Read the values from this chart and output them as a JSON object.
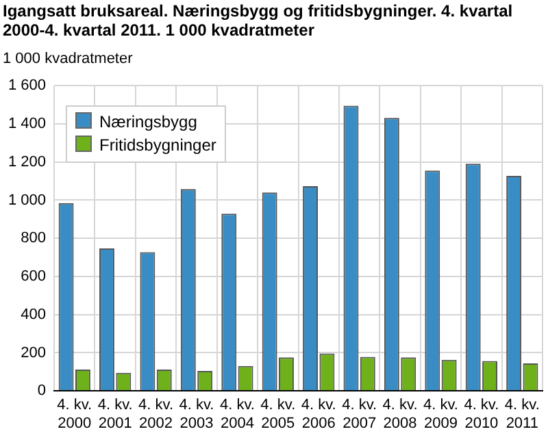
{
  "chart_data": {
    "type": "bar",
    "title": "Igangsatt bruksareal. Næringsbygg og fritidsbygninger. 4. kvartal 2000-4. kvartal 2011. 1 000 kvadratmeter",
    "ylabel": "1 000 kvadratmeter",
    "categories": [
      "4. kv. 2000",
      "4. kv. 2001",
      "4. kv. 2002",
      "4. kv. 2003",
      "4. kv. 2004",
      "4. kv. 2005",
      "4. kv. 2006",
      "4. kv. 2007",
      "4. kv. 2008",
      "4. kv. 2009",
      "4. kv. 2010",
      "4. kv. 2011"
    ],
    "series": [
      {
        "name": "Næringsbygg",
        "color": "#3a8dc4",
        "values": [
          985,
          747,
          727,
          1058,
          929,
          1040,
          1073,
          1495,
          1431,
          1155,
          1191,
          1127
        ]
      },
      {
        "name": "Fritidsbygninger",
        "color": "#6eb11b",
        "values": [
          112,
          95,
          112,
          105,
          131,
          176,
          196,
          178,
          176,
          163,
          157,
          144
        ]
      }
    ],
    "ylim": [
      0,
      1600
    ],
    "yticks": [
      0,
      200,
      400,
      600,
      800,
      {
        "value": 1000,
        "label": "1 000"
      },
      {
        "value": 1200,
        "label": "1 200"
      },
      {
        "value": 1400,
        "label": "1 400"
      },
      {
        "value": 1600,
        "label": "1 600"
      }
    ],
    "grid": true,
    "legend": "top left"
  }
}
